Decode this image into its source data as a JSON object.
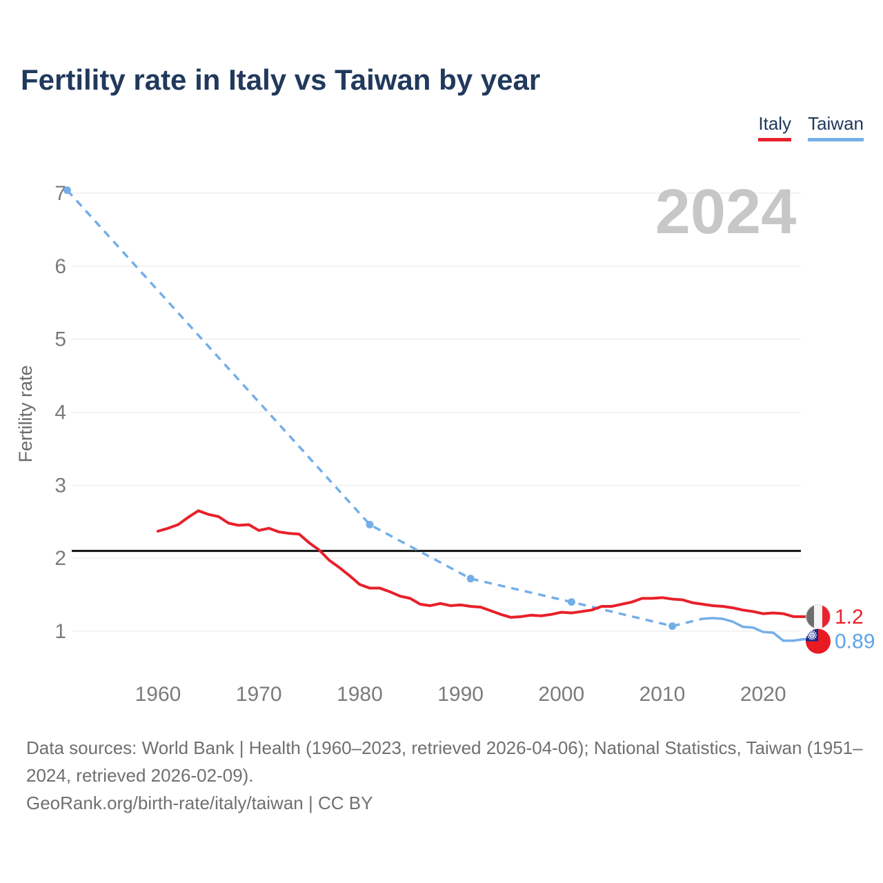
{
  "title": "Fertility rate in Italy vs Taiwan by year",
  "legend": [
    {
      "label": "Italy",
      "color": "#e8202a"
    },
    {
      "label": "Taiwan",
      "color": "#74aee8"
    }
  ],
  "watermark": "2024",
  "y_axis": {
    "label": "Fertility rate",
    "ticks": [
      1,
      2,
      3,
      4,
      5,
      6,
      7
    ]
  },
  "x_axis": {
    "ticks": [
      1960,
      1970,
      1980,
      1990,
      2000,
      2010,
      2020
    ]
  },
  "end_labels": [
    {
      "series": "Italy",
      "value": "1.2",
      "color": "#e8202a",
      "flag": "italy-flag"
    },
    {
      "series": "Taiwan",
      "value": "0.89",
      "color": "#5fa3e7",
      "flag": "taiwan-flag"
    }
  ],
  "footer": {
    "sources": "Data sources: World Bank | Health (1960–2023, retrieved 2026-04-06); National Statistics, Taiwan (1951–2024, retrieved 2026-02-09).",
    "attribution": "GeoRank.org/birth-rate/italy/taiwan | CC BY"
  },
  "chart_data": {
    "type": "line",
    "title": "Fertility rate in Italy vs Taiwan by year",
    "xlabel": "",
    "ylabel": "Fertility rate",
    "xlim": [
      1951,
      2024
    ],
    "ylim": [
      0.6,
      7.2
    ],
    "grid": "horizontal",
    "legend_position": "top-right",
    "watermark": "2024",
    "replacement_level": 2.1,
    "series": [
      {
        "name": "Italy",
        "color": "#e8202a",
        "style": "solid",
        "x_start": 1960,
        "values": [
          2.37,
          2.41,
          2.46,
          2.56,
          2.65,
          2.6,
          2.57,
          2.48,
          2.45,
          2.46,
          2.38,
          2.41,
          2.36,
          2.34,
          2.33,
          2.21,
          2.11,
          1.97,
          1.87,
          1.76,
          1.64,
          1.59,
          1.59,
          1.54,
          1.48,
          1.45,
          1.37,
          1.35,
          1.38,
          1.35,
          1.36,
          1.34,
          1.33,
          1.28,
          1.23,
          1.19,
          1.2,
          1.22,
          1.21,
          1.23,
          1.26,
          1.25,
          1.27,
          1.29,
          1.34,
          1.34,
          1.37,
          1.4,
          1.45,
          1.45,
          1.46,
          1.44,
          1.43,
          1.39,
          1.37,
          1.35,
          1.34,
          1.32,
          1.29,
          1.27,
          1.24,
          1.25,
          1.24,
          1.2
        ],
        "end_value_label": "1.2"
      },
      {
        "name": "Taiwan (interpolated)",
        "color": "#74aee8",
        "style": "dashed",
        "x": [
          1951,
          1981,
          1991,
          2001,
          2011,
          2014
        ],
        "values": [
          7.04,
          2.46,
          1.72,
          1.4,
          1.07,
          1.17
        ],
        "marker_x": [
          1951,
          1981,
          1991,
          2001,
          2011
        ],
        "marker_values": [
          7.04,
          2.46,
          1.72,
          1.4,
          1.07
        ]
      },
      {
        "name": "Taiwan",
        "color": "#74aee8",
        "style": "solid",
        "x_start": 2014,
        "values": [
          1.17,
          1.18,
          1.17,
          1.13,
          1.06,
          1.05,
          0.99,
          0.98,
          0.87,
          0.87,
          0.89
        ],
        "end_value_label": "0.89"
      }
    ]
  }
}
